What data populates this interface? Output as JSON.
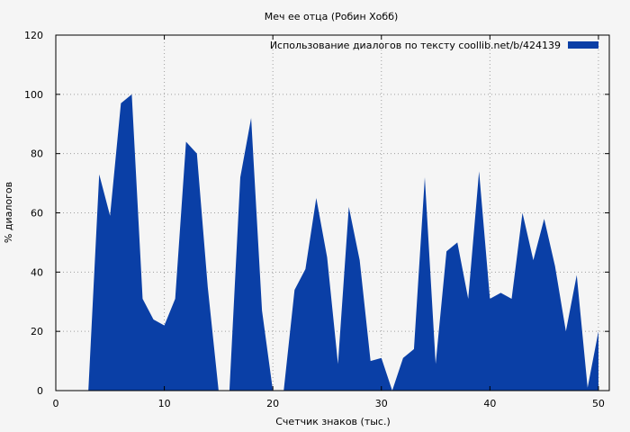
{
  "chart_data": {
    "type": "area",
    "title": "Меч ее отца (Робин Хобб)",
    "xlabel": "Счетчик знаков (тыс.)",
    "ylabel": "% диалогов",
    "xlim": [
      0,
      51
    ],
    "ylim": [
      0,
      120
    ],
    "xticks": [
      0,
      10,
      20,
      30,
      40,
      50
    ],
    "yticks": [
      0,
      20,
      40,
      60,
      80,
      100,
      120
    ],
    "grid": true,
    "legend_position": "top-right",
    "color": "#0a3fa6",
    "series": [
      {
        "name": "Использование диалогов по тексту  coollib.net/b/424139",
        "x": [
          1,
          2,
          3,
          4,
          5,
          6,
          7,
          8,
          9,
          10,
          11,
          12,
          13,
          14,
          15,
          16,
          17,
          18,
          19,
          20,
          21,
          22,
          23,
          24,
          25,
          26,
          27,
          28,
          29,
          30,
          31,
          32,
          33,
          34,
          35,
          36,
          37,
          38,
          39,
          40,
          41,
          42,
          43,
          44,
          45,
          46,
          47,
          48,
          49,
          50
        ],
        "values": [
          0,
          0,
          0,
          73,
          59,
          97,
          100,
          31,
          24,
          22,
          31,
          84,
          80,
          35,
          0,
          0,
          72,
          92,
          27,
          0,
          0,
          34,
          41,
          65,
          45,
          9,
          62,
          44,
          10,
          11,
          0,
          11,
          14,
          72,
          9,
          47,
          50,
          31,
          74,
          31,
          33,
          31,
          60,
          44,
          58,
          42,
          20,
          39,
          1,
          20
        ]
      }
    ]
  }
}
